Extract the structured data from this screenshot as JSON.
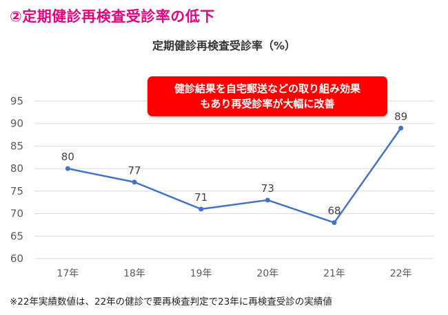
{
  "heading": "②定期健診再検査受診率の低下",
  "callout": {
    "line1": "健診結果を自宅郵送などの取り組み効果",
    "line2": "もあり再受診率が大幅に改善"
  },
  "footnote": "※22年実績数値は、22年の健診で要再検査判定で23年に再検査受診の実績値",
  "colors": {
    "heading": "#e6007e",
    "line": "#4472c4",
    "callout_bg": "#ff0000",
    "grid": "#d9d9d9",
    "tick_text": "#595959",
    "label_text": "#404040"
  },
  "chart_data": {
    "type": "line",
    "title": "定期健診再検査受診率（%）",
    "categories": [
      "17年",
      "18年",
      "19年",
      "20年",
      "21年",
      "22年"
    ],
    "values": [
      80,
      77,
      71,
      73,
      68,
      89
    ],
    "data_labels": [
      "80",
      "77",
      "71",
      "73",
      "68",
      "89"
    ],
    "ylim": [
      60,
      95
    ],
    "yticks": [
      60,
      65,
      70,
      75,
      80,
      85,
      90,
      95
    ],
    "grid": true,
    "legend": "none"
  }
}
